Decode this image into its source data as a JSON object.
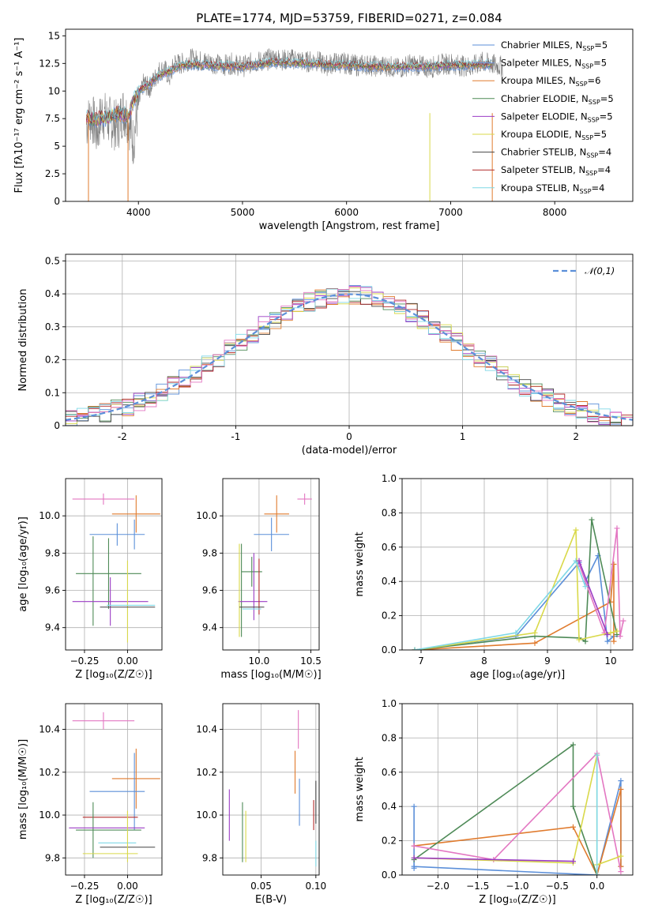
{
  "figure": {
    "background": "#ffffff"
  },
  "chart_data": [
    {
      "id": "spectrum",
      "type": "line",
      "title": "PLATE=1774, MJD=53759, FIBERID=0271, z=0.084",
      "xlabel": "wavelength [Angstrom, rest frame]",
      "ylabel": "Flux [fλ10⁻¹⁷ erg cm⁻² s⁻¹ A⁻¹]",
      "xlim": [
        3300,
        8750
      ],
      "ylim": [
        0,
        15.6
      ],
      "xticks": [
        4000,
        5000,
        6000,
        7000,
        8000
      ],
      "yticks": [
        0.0,
        2.5,
        5.0,
        7.5,
        10.0,
        12.5,
        15.0
      ],
      "grid": false,
      "legend_position": "right",
      "observed": {
        "color": "#808080",
        "x": [
          3500,
          3550,
          3600,
          3650,
          3700,
          3750,
          3800,
          3850,
          3900,
          3950,
          4000,
          4050,
          4100,
          4150,
          4200,
          4250,
          4300,
          4350,
          4400,
          4500,
          4600,
          4700,
          4800,
          4900,
          5000,
          5100,
          5200,
          5300,
          5400,
          5500,
          5600,
          5700,
          5800,
          5900,
          6000,
          6100,
          6200,
          6300,
          6400,
          6500,
          6600,
          6700,
          6800,
          6900,
          7000,
          7100,
          7200,
          7300,
          7400,
          7500
        ],
        "y": [
          7.0,
          7.8,
          6.2,
          8.0,
          7.4,
          7.1,
          6.8,
          8.2,
          7.6,
          5.4,
          8.6,
          10.8,
          10.2,
          11.0,
          11.8,
          12.0,
          11.2,
          12.6,
          12.4,
          12.9,
          12.7,
          12.6,
          12.3,
          12.5,
          12.2,
          12.6,
          12.7,
          13.0,
          12.8,
          12.9,
          12.6,
          12.8,
          12.3,
          12.6,
          12.5,
          12.3,
          12.4,
          12.2,
          12.3,
          12.0,
          12.4,
          12.3,
          12.1,
          12.4,
          12.5,
          12.3,
          12.2,
          12.6,
          12.4,
          12.2
        ]
      },
      "model": {
        "x": [
          3500,
          3600,
          3700,
          3800,
          3900,
          4000,
          4100,
          4200,
          4300,
          4400,
          4500,
          4700,
          5000,
          5300,
          5600,
          6000,
          6300,
          6600,
          7000,
          7400
        ],
        "y": [
          7.6,
          7.4,
          7.6,
          8.0,
          7.8,
          10.0,
          10.6,
          11.4,
          11.8,
          12.3,
          12.4,
          12.3,
          12.2,
          12.6,
          12.5,
          12.3,
          12.2,
          12.2,
          12.3,
          12.4
        ]
      },
      "series": [
        {
          "name": "Chabrier MILES, N",
          "sub": "SSP",
          "suffix": "=5",
          "color": "#5b8fd9"
        },
        {
          "name": "Salpeter MILES, N",
          "sub": "SSP",
          "suffix": "=5",
          "color": "#6f8fd0"
        },
        {
          "name": "Kroupa MILES, N",
          "sub": "SSP",
          "suffix": "=6",
          "color": "#e07b2e"
        },
        {
          "name": "Chabrier ELODIE, N",
          "sub": "SSP",
          "suffix": "=5",
          "color": "#4e8a57"
        },
        {
          "name": "Salpeter ELODIE, N",
          "sub": "SSP",
          "suffix": "=5",
          "color": "#9b3dc4"
        },
        {
          "name": "Kroupa ELODIE, N",
          "sub": "SSP",
          "suffix": "=5",
          "color": "#d9d94a"
        },
        {
          "name": "Chabrier STELIB, N",
          "sub": "SSP",
          "suffix": "=4",
          "color": "#444444"
        },
        {
          "name": "Salpeter STELIB, N",
          "sub": "SSP",
          "suffix": "=4",
          "color": "#b22a2a"
        },
        {
          "name": "Kroupa STELIB, N",
          "sub": "SSP",
          "suffix": "=4",
          "color": "#7fd8e6"
        }
      ]
    },
    {
      "id": "residuals",
      "type": "line",
      "xlabel": "(data-model)/error",
      "ylabel": "Normed distribution",
      "xlim": [
        -2.5,
        2.5
      ],
      "ylim": [
        0,
        0.52
      ],
      "xticks": [
        -2,
        -1,
        0,
        1,
        2
      ],
      "yticks": [
        0.0,
        0.1,
        0.2,
        0.3,
        0.4,
        0.5
      ],
      "grid": true,
      "legend_position": "top-right",
      "normal": {
        "label": "𝒩(0,1)",
        "color": "#5b8fd9"
      },
      "hist_colors": [
        "#5b8fd9",
        "#e07b2e",
        "#4e8a57",
        "#9b3dc4",
        "#d9d94a",
        "#444444",
        "#b22a2a",
        "#7fd8e6",
        "#e377c2"
      ]
    },
    {
      "id": "age-vs-z",
      "type": "scatter",
      "xlabel": "Z [log₁₀(Z/Z☉)]",
      "ylabel": "age  [log₁₀(age/yr)]",
      "xlim": [
        -0.36,
        0.2
      ],
      "ylim": [
        9.28,
        10.2
      ],
      "xticks": [
        -0.25,
        0.0
      ],
      "xticklabels": [
        "−0.25",
        "0.00"
      ],
      "yticks": [
        9.4,
        9.6,
        9.8,
        10.0
      ],
      "yticklabels": [
        "9.4",
        "9.6",
        "9.8",
        "10.0"
      ],
      "grid": true,
      "points": [
        {
          "x": -0.14,
          "y": 10.09,
          "xerr": 0.18,
          "yerr": 0.03,
          "color": "#e377c2"
        },
        {
          "x": 0.05,
          "y": 10.01,
          "xerr": 0.14,
          "yerr": 0.1,
          "color": "#e07b2e"
        },
        {
          "x": -0.06,
          "y": 9.9,
          "xerr": 0.16,
          "yerr": 0.06,
          "color": "#5b8fd9"
        },
        {
          "x": 0.04,
          "y": 9.9,
          "xerr": 0.0,
          "yerr": 0.08,
          "color": "#5b8fd9"
        },
        {
          "x": -0.11,
          "y": 9.69,
          "xerr": 0.19,
          "yerr": 0.19,
          "color": "#4e8a57"
        },
        {
          "x": -0.2,
          "y": 9.65,
          "xerr": 0.0,
          "yerr": 0.24,
          "color": "#4e8a57"
        },
        {
          "x": -0.1,
          "y": 9.54,
          "xerr": 0.22,
          "yerr": 0.13,
          "color": "#9b3dc4"
        },
        {
          "x": 0.0,
          "y": 9.54,
          "xerr": 0.0,
          "yerr": 0.22,
          "color": "#d9d94a"
        },
        {
          "x": -0.0,
          "y": 9.51,
          "xerr": 0.16,
          "yerr": 0.0,
          "color": "#444444"
        },
        {
          "x": 0.02,
          "y": 9.52,
          "xerr": 0.14,
          "yerr": 0.0,
          "color": "#7fd8e6"
        }
      ]
    },
    {
      "id": "age-vs-mass",
      "type": "scatter",
      "xlabel": "mass [log₁₀(M/M☉)]",
      "ylabel": "",
      "xlim": [
        9.65,
        10.58
      ],
      "ylim": [
        9.28,
        10.2
      ],
      "xticks": [
        10.0,
        10.5
      ],
      "xticklabels": [
        "10.0",
        "10.5"
      ],
      "yticks": [
        9.4,
        9.6,
        9.8,
        10.0
      ],
      "yticklabels": [
        "9.4",
        "9.6",
        "9.8",
        "10.0"
      ],
      "grid": true,
      "points": [
        {
          "x": 10.44,
          "y": 10.09,
          "xerr": 0.07,
          "yerr": 0.03,
          "color": "#e377c2"
        },
        {
          "x": 10.17,
          "y": 10.01,
          "xerr": 0.12,
          "yerr": 0.1,
          "color": "#e07b2e"
        },
        {
          "x": 10.12,
          "y": 9.9,
          "xerr": 0.17,
          "yerr": 0.09,
          "color": "#5b8fd9"
        },
        {
          "x": 9.93,
          "y": 9.7,
          "xerr": 0.1,
          "yerr": 0.08,
          "color": "#4e8a57"
        },
        {
          "x": 9.83,
          "y": 9.6,
          "xerr": 0.0,
          "yerr": 0.25,
          "color": "#4e8a57"
        },
        {
          "x": 9.95,
          "y": 9.62,
          "xerr": 0.0,
          "yerr": 0.18,
          "color": "#9b3dc4"
        },
        {
          "x": 9.94,
          "y": 9.54,
          "xerr": 0.14,
          "yerr": 0.0,
          "color": "#9b3dc4"
        },
        {
          "x": 10.0,
          "y": 9.62,
          "xerr": 0.0,
          "yerr": 0.15,
          "color": "#b22a2a"
        },
        {
          "x": 9.81,
          "y": 9.6,
          "xerr": 0.0,
          "yerr": 0.25,
          "color": "#d9d94a"
        },
        {
          "x": 9.93,
          "y": 9.51,
          "xerr": 0.12,
          "yerr": 0.0,
          "color": "#444444"
        },
        {
          "x": 9.93,
          "y": 9.5,
          "xerr": 0.09,
          "yerr": 0.0,
          "color": "#7fd8e6"
        }
      ]
    },
    {
      "id": "weight-vs-age",
      "type": "line",
      "xlabel": "age  [log₁₀(age/yr)]",
      "ylabel": "mass weight",
      "xlim": [
        6.7,
        10.35
      ],
      "ylim": [
        0,
        1.0
      ],
      "xticks": [
        7,
        8,
        9,
        10
      ],
      "xticklabels": [
        "7",
        "8",
        "9",
        "10"
      ],
      "yticks": [
        0.0,
        0.2,
        0.4,
        0.6,
        0.8,
        1.0
      ],
      "yticklabels": [
        "0.0",
        "0.2",
        "0.4",
        "0.6",
        "0.8",
        "1.0"
      ],
      "grid": true,
      "series": [
        {
          "color": "#5b8fd9",
          "x": [
            6.9,
            8.5,
            9.5,
            9.6,
            9.8,
            9.95,
            10.05
          ],
          "y": [
            0.0,
            0.08,
            0.51,
            0.4,
            0.55,
            0.05,
            0.08
          ]
        },
        {
          "color": "#e07b2e",
          "x": [
            6.9,
            8.8,
            10.0,
            10.05,
            10.05
          ],
          "y": [
            0.0,
            0.04,
            0.28,
            0.5,
            0.05
          ]
        },
        {
          "color": "#4e8a57",
          "x": [
            6.9,
            8.8,
            9.5,
            9.6,
            9.7,
            10.1
          ],
          "y": [
            0.0,
            0.08,
            0.07,
            0.05,
            0.76,
            0.09
          ]
        },
        {
          "color": "#e377c2",
          "x": [
            9.5,
            9.9,
            10.1,
            10.15,
            10.2
          ],
          "y": [
            0.5,
            0.1,
            0.71,
            0.08,
            0.17
          ]
        },
        {
          "color": "#d9d94a",
          "x": [
            6.9,
            8.8,
            9.45,
            9.5,
            10.0,
            10.1
          ],
          "y": [
            0.0,
            0.1,
            0.7,
            0.06,
            0.1,
            0.11
          ]
        },
        {
          "color": "#7fd8e6",
          "x": [
            6.9,
            8.5,
            9.45,
            9.6
          ],
          "y": [
            0.0,
            0.1,
            0.52,
            0.37
          ]
        },
        {
          "color": "#9b3dc4",
          "x": [
            9.5,
            9.95
          ],
          "y": [
            0.52,
            0.09
          ]
        }
      ]
    },
    {
      "id": "mass-vs-z",
      "type": "scatter",
      "xlabel": "Z [log₁₀(Z/Z☉)]",
      "ylabel": "mass [log₁₀(M/M☉)]",
      "xlim": [
        -0.36,
        0.2
      ],
      "ylim": [
        9.72,
        10.52
      ],
      "xticks": [
        -0.25,
        0.0
      ],
      "xticklabels": [
        "−0.25",
        "0.00"
      ],
      "yticks": [
        9.8,
        10.0,
        10.2,
        10.4
      ],
      "yticklabels": [
        "9.8",
        "10.0",
        "10.2",
        "10.4"
      ],
      "grid": true,
      "points": [
        {
          "x": -0.14,
          "y": 10.44,
          "xerr": 0.18,
          "yerr": 0.04,
          "color": "#e377c2"
        },
        {
          "x": 0.05,
          "y": 10.17,
          "xerr": 0.14,
          "yerr": 0.14,
          "color": "#e07b2e"
        },
        {
          "x": -0.06,
          "y": 10.11,
          "xerr": 0.16,
          "yerr": 0.0,
          "color": "#5b8fd9"
        },
        {
          "x": 0.04,
          "y": 10.11,
          "xerr": 0.0,
          "yerr": 0.18,
          "color": "#5b8fd9"
        },
        {
          "x": -0.1,
          "y": 9.99,
          "xerr": 0.16,
          "yerr": 0.0,
          "color": "#b22a2a"
        },
        {
          "x": -0.11,
          "y": 9.93,
          "xerr": 0.19,
          "yerr": 0.0,
          "color": "#4e8a57"
        },
        {
          "x": -0.2,
          "y": 9.93,
          "xerr": 0.0,
          "yerr": 0.13,
          "color": "#4e8a57"
        },
        {
          "x": -0.12,
          "y": 9.94,
          "xerr": 0.22,
          "yerr": 0.0,
          "color": "#9b3dc4"
        },
        {
          "x": -0.06,
          "y": 9.87,
          "xerr": 0.11,
          "yerr": 0.0,
          "color": "#7fd8e6"
        },
        {
          "x": 0.0,
          "y": 9.85,
          "xerr": 0.16,
          "yerr": 0.0,
          "color": "#444444"
        },
        {
          "x": -0.1,
          "y": 9.82,
          "xerr": 0.16,
          "yerr": 0.0,
          "color": "#d9d94a"
        },
        {
          "x": 0.0,
          "y": 9.9,
          "xerr": 0.0,
          "yerr": 0.12,
          "color": "#d9d94a"
        }
      ]
    },
    {
      "id": "mass-vs-ebv",
      "type": "scatter",
      "xlabel": "E(B-V)",
      "ylabel": "",
      "xlim": [
        0.015,
        0.103
      ],
      "ylim": [
        9.72,
        10.52
      ],
      "xticks": [
        0.05,
        0.1
      ],
      "xticklabels": [
        "0.05",
        "0.10"
      ],
      "yticks": [
        9.8,
        10.0,
        10.2,
        10.4
      ],
      "yticklabels": [
        "9.8",
        "10.0",
        "10.2",
        "10.4"
      ],
      "grid": true,
      "points": [
        {
          "x": 0.084,
          "y": 10.4,
          "xerr": 0.0,
          "yerr": 0.09,
          "color": "#e377c2"
        },
        {
          "x": 0.081,
          "y": 10.2,
          "xerr": 0.0,
          "yerr": 0.1,
          "color": "#e07b2e"
        },
        {
          "x": 0.085,
          "y": 10.06,
          "xerr": 0.0,
          "yerr": 0.11,
          "color": "#5b8fd9"
        },
        {
          "x": 0.1,
          "y": 10.06,
          "xerr": 0.0,
          "yerr": 0.1,
          "color": "#444444"
        },
        {
          "x": 0.098,
          "y": 10.0,
          "xerr": 0.0,
          "yerr": 0.07,
          "color": "#b22a2a"
        },
        {
          "x": 0.021,
          "y": 10.0,
          "xerr": 0.0,
          "yerr": 0.12,
          "color": "#9b3dc4"
        },
        {
          "x": 0.033,
          "y": 9.92,
          "xerr": 0.0,
          "yerr": 0.14,
          "color": "#4e8a57"
        },
        {
          "x": 0.036,
          "y": 9.9,
          "xerr": 0.0,
          "yerr": 0.12,
          "color": "#d9d94a"
        },
        {
          "x": 0.1,
          "y": 9.82,
          "xerr": 0.0,
          "yerr": 0.06,
          "color": "#7fd8e6"
        }
      ]
    },
    {
      "id": "weight-vs-z",
      "type": "line",
      "xlabel": "Z [log₁₀(Z/Z☉)]",
      "ylabel": "mass weight",
      "xlim": [
        -2.45,
        0.45
      ],
      "ylim": [
        0,
        1.0
      ],
      "xticks": [
        -2.0,
        -1.5,
        -1.0,
        -0.5,
        0.0
      ],
      "xticklabels": [
        "−2.0",
        "−1.5",
        "−1.0",
        "−0.5",
        "0.0"
      ],
      "yticks": [
        0.0,
        0.2,
        0.4,
        0.6,
        0.8,
        1.0
      ],
      "yticklabels": [
        "0.0",
        "0.2",
        "0.4",
        "0.6",
        "0.8",
        "1.0"
      ],
      "grid": true,
      "series": [
        {
          "color": "#5b8fd9",
          "x": [
            -2.3,
            -2.3,
            -2.3,
            0.0,
            0.3,
            0.3
          ],
          "y": [
            0.4,
            0.04,
            0.05,
            0.0,
            0.55,
            0.05
          ]
        },
        {
          "color": "#e07b2e",
          "x": [
            -2.3,
            -0.3,
            0.0,
            0.3,
            0.3
          ],
          "y": [
            0.17,
            0.28,
            0.0,
            0.5,
            0.05
          ]
        },
        {
          "color": "#4e8a57",
          "x": [
            -2.3,
            -0.3,
            -0.3,
            0.0
          ],
          "y": [
            0.09,
            0.76,
            0.4,
            0.0
          ]
        },
        {
          "color": "#e377c2",
          "x": [
            -2.3,
            -1.3,
            0.0,
            0.3
          ],
          "y": [
            0.17,
            0.09,
            0.71,
            0.02
          ]
        },
        {
          "color": "#d9d94a",
          "x": [
            -2.3,
            -0.3,
            0.0,
            0.0,
            0.3
          ],
          "y": [
            0.1,
            0.07,
            0.7,
            0.06,
            0.11
          ]
        },
        {
          "color": "#7fd8e6",
          "x": [
            0.0,
            0.0
          ],
          "y": [
            0.7,
            0.0
          ]
        },
        {
          "color": "#9b3dc4",
          "x": [
            -2.3,
            -0.3
          ],
          "y": [
            0.1,
            0.08
          ]
        }
      ]
    }
  ]
}
